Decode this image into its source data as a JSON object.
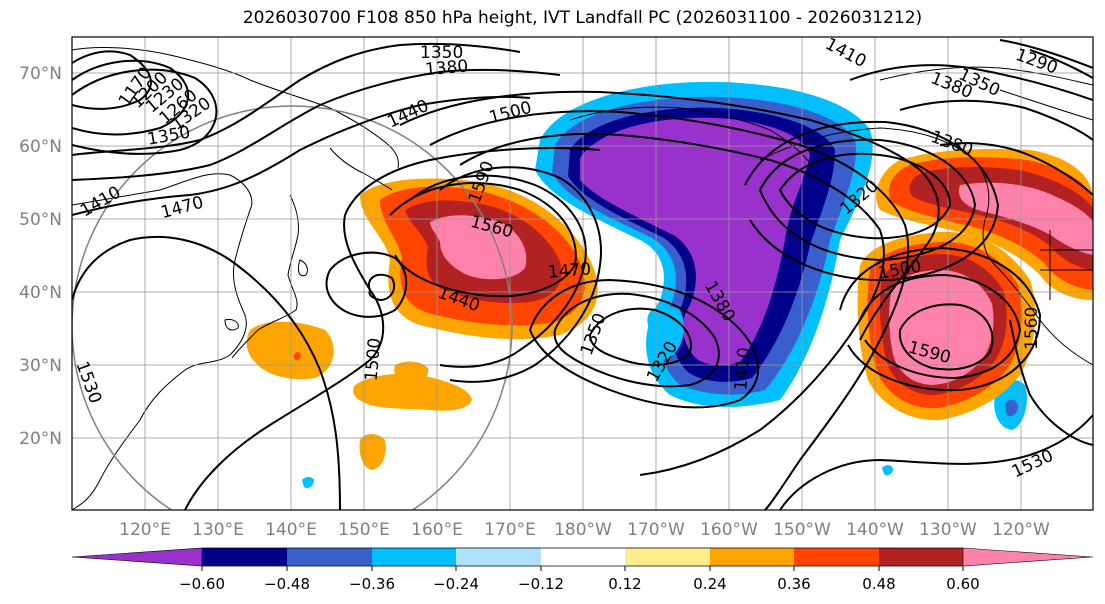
{
  "title": "2026030700 F108 850 hPa height, IVT Landfall PC (2026031100 - 2026031212)",
  "lat_labels": [
    "70°N",
    "60°N",
    "50°N",
    "40°N",
    "30°N",
    "20°N"
  ],
  "lon_labels": [
    "120°E",
    "130°E",
    "140°E",
    "150°E",
    "160°E",
    "170°E",
    "180°W",
    "170°W",
    "160°W",
    "150°W",
    "140°W",
    "130°W",
    "120°W"
  ],
  "contour_labels": [
    "1170",
    "1200",
    "1230",
    "1260",
    "1290",
    "1320",
    "1350",
    "1380",
    "1410",
    "1440",
    "1470",
    "1500",
    "1530",
    "1560",
    "1590"
  ],
  "colorbar": {
    "colors": [
      "#9932cc",
      "#00008b",
      "#3a5fcd",
      "#00bfff",
      "#b0e2ff",
      "#ffffff",
      "#ffec8b",
      "#ffa500",
      "#ff4500",
      "#b22222",
      "#ff82ab"
    ],
    "tick_labels": [
      "−0.60",
      "−0.48",
      "−0.36",
      "−0.24",
      "−0.12",
      "0.12",
      "0.24",
      "0.36",
      "0.48",
      "0.60"
    ]
  }
}
